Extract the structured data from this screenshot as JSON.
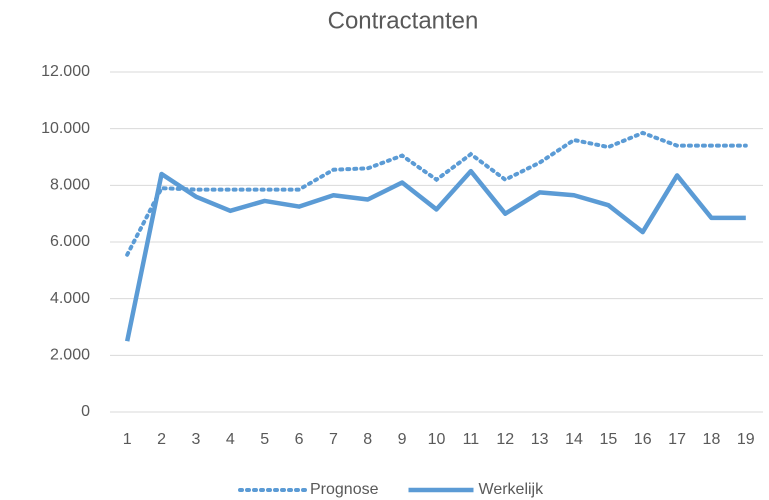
{
  "chart_data": {
    "type": "line",
    "title": "Contractanten",
    "categories": [
      "1",
      "2",
      "3",
      "4",
      "5",
      "6",
      "7",
      "8",
      "9",
      "10",
      "11",
      "12",
      "13",
      "14",
      "15",
      "16",
      "17",
      "18",
      "19"
    ],
    "series": [
      {
        "name": "Prognose",
        "color": "#5b9bd5",
        "style": "dotted",
        "values": [
          5550,
          7900,
          7850,
          7850,
          7850,
          7850,
          8550,
          8600,
          9050,
          8200,
          9100,
          8200,
          8800,
          9600,
          9350,
          9850,
          9400,
          9400,
          9400
        ]
      },
      {
        "name": "Werkelijk",
        "color": "#5b9bd5",
        "style": "solid",
        "values": [
          2500,
          8400,
          7600,
          7100,
          7450,
          7250,
          7650,
          7500,
          8100,
          7150,
          8500,
          7000,
          7750,
          7650,
          7300,
          6350,
          8350,
          6850,
          6850
        ]
      }
    ],
    "ylim": [
      0,
      12000
    ],
    "yticks": [
      0,
      {
        "value": 2000,
        "label": "2.000"
      },
      {
        "value": 4000,
        "label": "4.000"
      },
      {
        "value": 6000,
        "label": "6.000"
      },
      {
        "value": 8000,
        "label": "8.000"
      },
      {
        "value": 10000,
        "label": "10.000"
      },
      {
        "value": 12000,
        "label": "12.000"
      }
    ],
    "grid": true,
    "legend": "bottom"
  }
}
